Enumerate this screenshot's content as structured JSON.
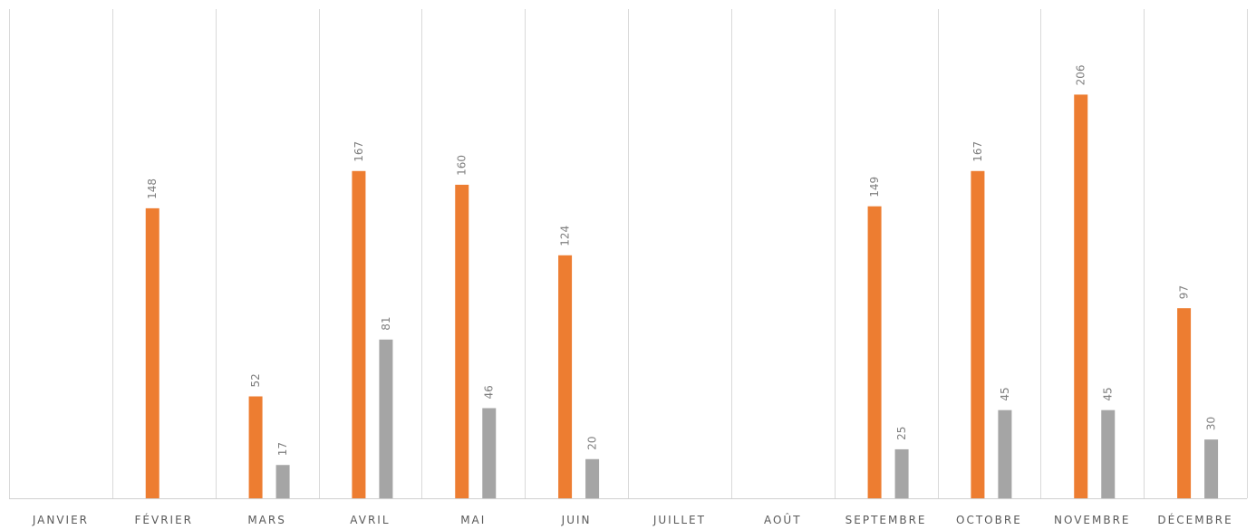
{
  "chart_data": {
    "type": "bar",
    "title": "",
    "xlabel": "",
    "ylabel": "",
    "ylim": [
      0,
      240
    ],
    "grid": "vertical",
    "legend": "none",
    "categories": [
      "JANVIER",
      "FÉVRIER",
      "MARS",
      "AVRIL",
      "MAI",
      "JUIN",
      "JUILLET",
      "AOÛT",
      "SEPTEMBRE",
      "OCTOBRE",
      "NOVEMBRE",
      "DÉCEMBRE"
    ],
    "series": [
      {
        "color": "#ed7d31",
        "values": [
          null,
          148,
          52,
          167,
          160,
          124,
          null,
          null,
          149,
          167,
          206,
          97
        ]
      },
      {
        "color": "#a5a5a5",
        "values": [
          null,
          null,
          17,
          81,
          46,
          20,
          null,
          null,
          25,
          45,
          45,
          30
        ]
      }
    ]
  }
}
